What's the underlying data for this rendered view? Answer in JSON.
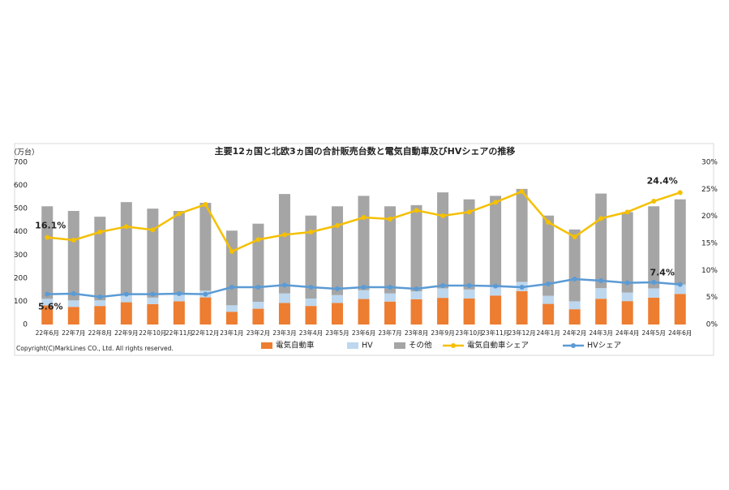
{
  "chart_data": {
    "type": "bar",
    "stacked": true,
    "title": "主要12ヵ国と北欧3ヵ国の合計販売台数と電気自動車及びHVシェアの推移",
    "y_label": "（万台）",
    "note": "Copyright(C)MarkLines CO., Ltd. All rights reserved.",
    "categories": [
      "22年6月",
      "22年7月",
      "22年8月",
      "22年9月",
      "22年10月",
      "22年11月",
      "22年12月",
      "23年1月",
      "23年2月",
      "23年3月",
      "23年4月",
      "23年5月",
      "23年6月",
      "23年7月",
      "23年8月",
      "23年9月",
      "23年10月",
      "23年11月",
      "23年12月",
      "24年1月",
      "24年2月",
      "24年3月",
      "24年4月",
      "24年5月",
      "24年6月"
    ],
    "ylim": [
      0,
      700
    ],
    "yticks": [
      0,
      100,
      200,
      300,
      400,
      500,
      600,
      700
    ],
    "y2lim": [
      0,
      30
    ],
    "y2ticks": [
      {
        "value": 0,
        "label": "0%"
      },
      {
        "value": 5,
        "label": "5%"
      },
      {
        "value": 10,
        "label": "10%"
      },
      {
        "value": 15,
        "label": "15%"
      },
      {
        "value": 20,
        "label": "20%"
      },
      {
        "value": 25,
        "label": "25%"
      },
      {
        "value": 30,
        "label": "30%"
      }
    ],
    "series": [
      {
        "name": "電気自動車",
        "type": "bar",
        "color": "#ed7d31",
        "values": [
          82,
          76,
          80,
          96,
          88,
          100,
          117,
          55,
          68,
          93,
          80,
          93,
          110,
          99,
          109,
          115,
          112,
          125,
          144,
          89,
          66,
          111,
          101,
          116,
          132
        ]
      },
      {
        "name": "HV",
        "type": "bar",
        "color": "#bdd7ee",
        "values": [
          29,
          28,
          24,
          30,
          28,
          28,
          29,
          28,
          30,
          41,
          32,
          34,
          38,
          35,
          34,
          41,
          39,
          39,
          40,
          35,
          34,
          46,
          37,
          40,
          40
        ]
      },
      {
        "name": "その他",
        "type": "bar",
        "color": "#a5a5a5",
        "values": [
          399,
          386,
          361,
          402,
          384,
          362,
          379,
          322,
          337,
          429,
          358,
          383,
          407,
          376,
          372,
          414,
          389,
          391,
          401,
          346,
          310,
          408,
          347,
          354,
          368
        ]
      },
      {
        "name": "電気自動車シェア",
        "type": "line",
        "axis": "y2",
        "color": "#f5c000",
        "values": [
          16.1,
          15.6,
          17.1,
          18.1,
          17.5,
          20.5,
          22.2,
          13.5,
          15.7,
          16.6,
          17.1,
          18.3,
          19.8,
          19.5,
          21.1,
          20.1,
          20.8,
          22.6,
          24.6,
          18.9,
          16.2,
          19.6,
          20.8,
          22.8,
          24.4
        ],
        "value_labels": [
          "16.1%",
          null,
          null,
          null,
          null,
          null,
          null,
          null,
          null,
          null,
          null,
          null,
          null,
          null,
          null,
          null,
          null,
          null,
          null,
          null,
          null,
          null,
          null,
          null,
          "24.4%"
        ]
      },
      {
        "name": "HVシェア",
        "type": "line",
        "axis": "y2",
        "color": "#5b9bd5",
        "values": [
          5.6,
          5.7,
          5.1,
          5.6,
          5.6,
          5.7,
          5.6,
          6.9,
          6.9,
          7.3,
          6.9,
          6.6,
          6.9,
          6.9,
          6.6,
          7.2,
          7.2,
          7.1,
          6.9,
          7.5,
          8.4,
          8.1,
          7.7,
          7.8,
          7.4
        ],
        "value_labels": [
          "5.6%",
          null,
          null,
          null,
          null,
          null,
          null,
          null,
          null,
          null,
          null,
          null,
          null,
          null,
          null,
          null,
          null,
          null,
          null,
          null,
          null,
          null,
          null,
          null,
          "7.4%"
        ]
      }
    ]
  }
}
